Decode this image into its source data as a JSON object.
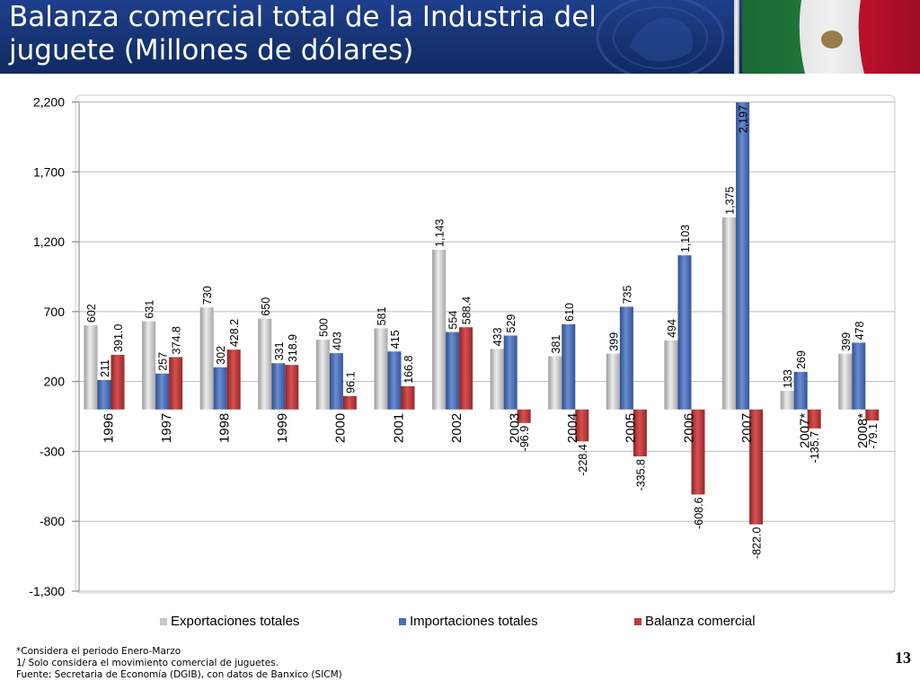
{
  "header": {
    "title_line1": "Balanza comercial total de la Industria del",
    "title_line2": "juguete (Millones de dólares)"
  },
  "colors": {
    "header_bg": "#173575",
    "exports": "#c8c8c8",
    "imports": "#4a6fb6",
    "balance": "#c03a3a"
  },
  "chart_data": {
    "type": "bar",
    "categories": [
      "1996",
      "1997",
      "1998",
      "1999",
      "2000",
      "2001",
      "2002",
      "2003",
      "2004",
      "2005",
      "2006",
      "2007",
      "2007*",
      "2008*"
    ],
    "series": [
      {
        "name": "Exportaciones totales",
        "values": [
          602,
          631,
          730,
          650,
          500,
          581,
          1143,
          433,
          381,
          399,
          494,
          1375,
          133,
          399
        ],
        "labels": [
          "602",
          "631",
          "730",
          "650",
          "500",
          "581",
          "1,143",
          "433",
          "381",
          "399",
          "494",
          "1,375",
          "133",
          "399"
        ]
      },
      {
        "name": "Importaciones totales",
        "values": [
          211,
          257,
          302,
          331,
          403,
          415,
          554,
          529,
          610,
          735,
          1103,
          2197,
          269,
          478
        ],
        "labels": [
          "211",
          "257",
          "302",
          "331",
          "403",
          "415",
          "554",
          "529",
          "610",
          "735",
          "1,103",
          "2,197",
          "269",
          "478"
        ]
      },
      {
        "name": "Balanza comercial",
        "values": [
          391.0,
          374.8,
          428.2,
          318.9,
          96.1,
          166.8,
          588.4,
          -96.9,
          -228.4,
          -335.8,
          -608.6,
          -822.0,
          -135.7,
          -79.1
        ],
        "labels": [
          "391.0",
          "374.8",
          "428.2",
          "318.9",
          "96.1",
          "166.8",
          "588.4",
          "-96.9",
          "-228.4",
          "-335.8",
          "-608.6",
          "-822.0",
          "-135.7",
          "-79.1"
        ]
      }
    ],
    "yticks": [
      2200,
      1700,
      1200,
      700,
      200,
      -300,
      -800,
      -1300
    ],
    "ytick_labels": [
      "2,200",
      "1,700",
      "1,200",
      "700",
      "200",
      "-300",
      "-800",
      "-1,300"
    ],
    "ylim": [
      -1300,
      2200
    ],
    "grid": true,
    "legend_position": "bottom"
  },
  "footnotes": {
    "note1": "*Considera el periodo Enero-Marzo",
    "note2": "1/ Solo considera el movimiento comercial de juguetes.",
    "note3": "Fuente: Secretaria de Economía (DGIB), con datos de Banxico (SICM)"
  },
  "page_number": "13"
}
